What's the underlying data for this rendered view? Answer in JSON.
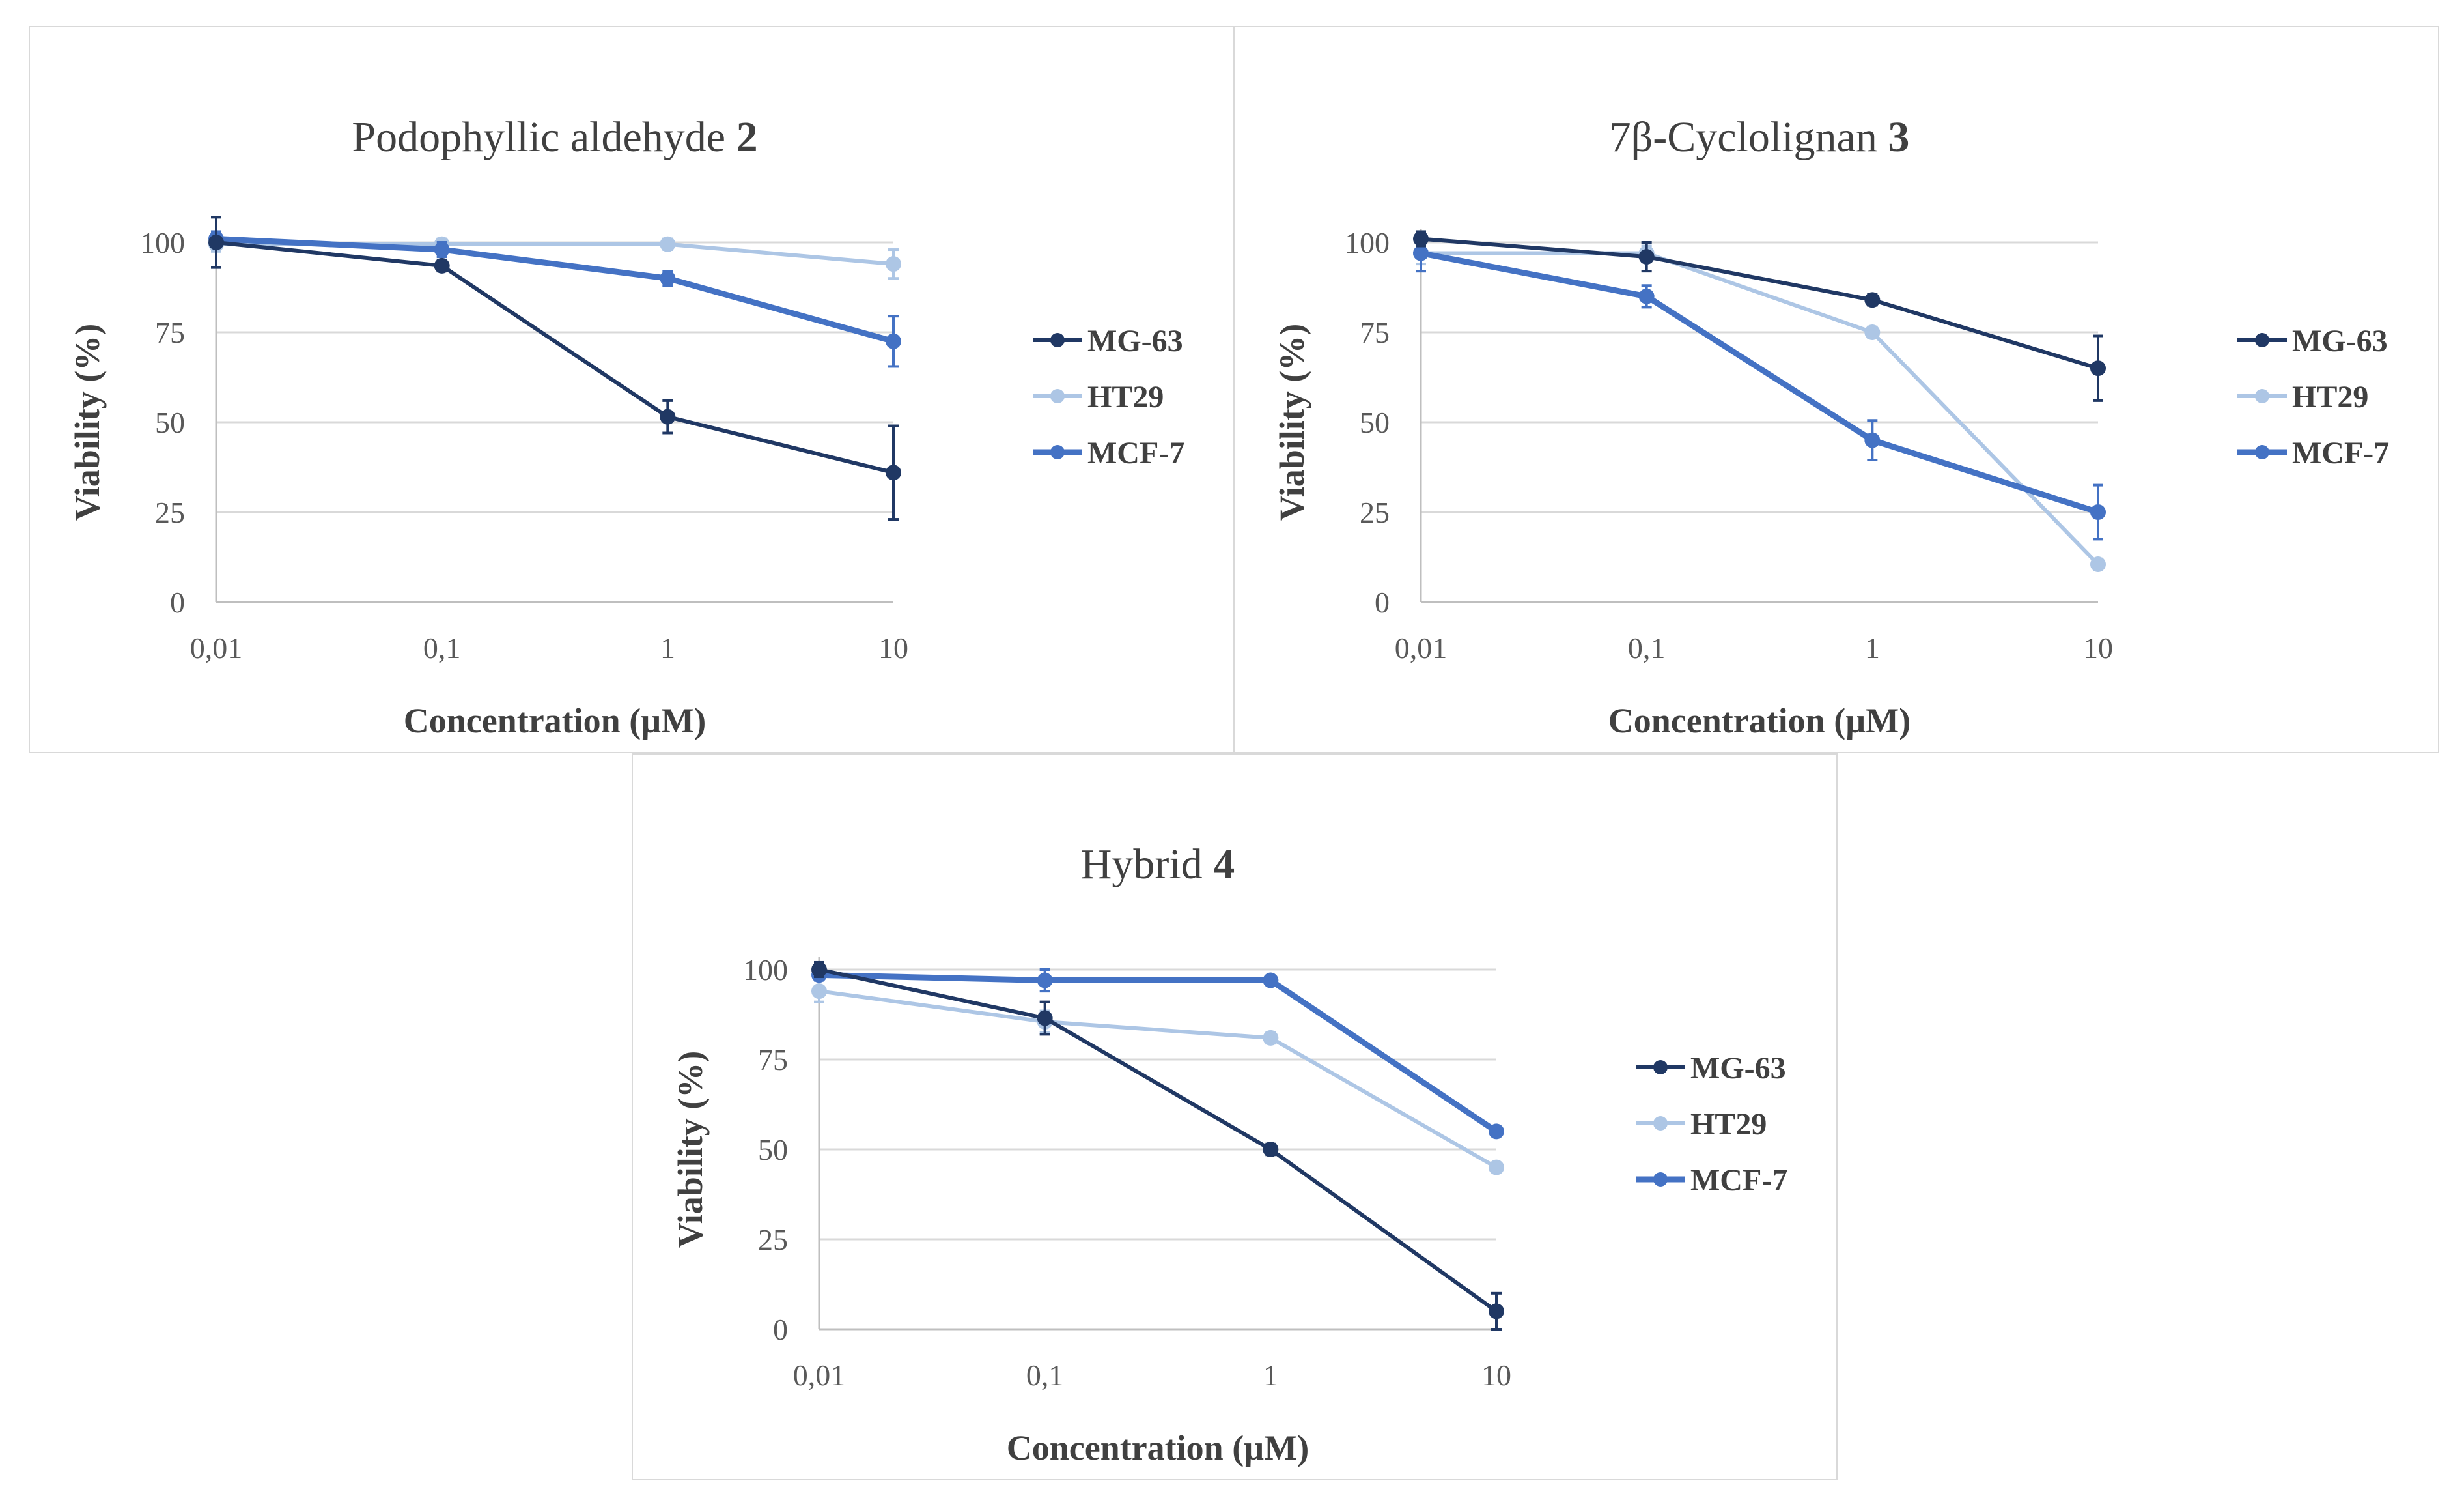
{
  "chart_data": [
    {
      "type": "line",
      "title": "Podophyllic aldehyde",
      "title_bold": "2",
      "xlabel": "Concentration (µM)",
      "ylabel": "Viability (%)",
      "x_scale": "log",
      "categories": [
        "0,01",
        "0,1",
        "1",
        "10"
      ],
      "x": [
        0.01,
        0.1,
        1,
        10
      ],
      "ylim": [
        0,
        100
      ],
      "yticks": [
        "0",
        "25",
        "50",
        "75",
        "100"
      ],
      "ytick_values": [
        0,
        25,
        50,
        75,
        100
      ],
      "legend_position": "right",
      "series": [
        {
          "name": "MG-63",
          "color": "#203864",
          "values": [
            100,
            93.5,
            51.5,
            36
          ],
          "errors": [
            7,
            1.5,
            4.5,
            13
          ]
        },
        {
          "name": "HT29",
          "color": "#adc6e5",
          "values": [
            99.5,
            99.5,
            99.5,
            94
          ],
          "errors": [
            2,
            1.5,
            1.5,
            4
          ]
        },
        {
          "name": "MCF-7",
          "color": "#4472c4",
          "values": [
            101,
            98,
            90,
            72.5
          ],
          "errors": [
            2,
            2,
            2,
            7
          ]
        }
      ]
    },
    {
      "type": "line",
      "title": "7β-Cyclolignan",
      "title_bold": "3",
      "xlabel": "Concentration (µM)",
      "ylabel": "Viability (%)",
      "x_scale": "log",
      "categories": [
        "0,01",
        "0,1",
        "1",
        "10"
      ],
      "x": [
        0.01,
        0.1,
        1,
        10
      ],
      "ylim": [
        0,
        100
      ],
      "yticks": [
        "0",
        "25",
        "50",
        "75",
        "100"
      ],
      "ytick_values": [
        0,
        25,
        50,
        75,
        100
      ],
      "legend_position": "right",
      "series": [
        {
          "name": "MG-63",
          "color": "#203864",
          "values": [
            101,
            96,
            84,
            65
          ],
          "errors": [
            2,
            4,
            1.5,
            9
          ]
        },
        {
          "name": "HT29",
          "color": "#adc6e5",
          "values": [
            97,
            97,
            75,
            10.5
          ],
          "errors": [
            3,
            2,
            1.5,
            1.5
          ]
        },
        {
          "name": "MCF-7",
          "color": "#4472c4",
          "values": [
            97,
            85,
            45,
            25
          ],
          "errors": [
            5,
            3,
            5.5,
            7.5
          ]
        }
      ]
    },
    {
      "type": "line",
      "title": "Hybrid",
      "title_bold": "4",
      "xlabel": "Concentration (µM)",
      "ylabel": "Viability (%)",
      "x_scale": "log",
      "categories": [
        "0,01",
        "0,1",
        "1",
        "10"
      ],
      "x": [
        0.01,
        0.1,
        1,
        10
      ],
      "ylim": [
        0,
        100
      ],
      "yticks": [
        "0",
        "25",
        "50",
        "75",
        "100"
      ],
      "ytick_values": [
        0,
        25,
        50,
        75,
        100
      ],
      "legend_position": "right",
      "series": [
        {
          "name": "MG-63",
          "color": "#203864",
          "values": [
            100,
            86.5,
            50,
            5
          ],
          "errors": [
            2,
            4.5,
            1.5,
            5
          ]
        },
        {
          "name": "HT29",
          "color": "#adc6e5",
          "values": [
            94,
            85.5,
            81,
            45
          ],
          "errors": [
            3,
            3,
            1.5,
            1
          ]
        },
        {
          "name": "MCF-7",
          "color": "#4472c4",
          "values": [
            98.5,
            97,
            97,
            55
          ],
          "errors": [
            1.5,
            3,
            1,
            1
          ]
        }
      ]
    }
  ]
}
